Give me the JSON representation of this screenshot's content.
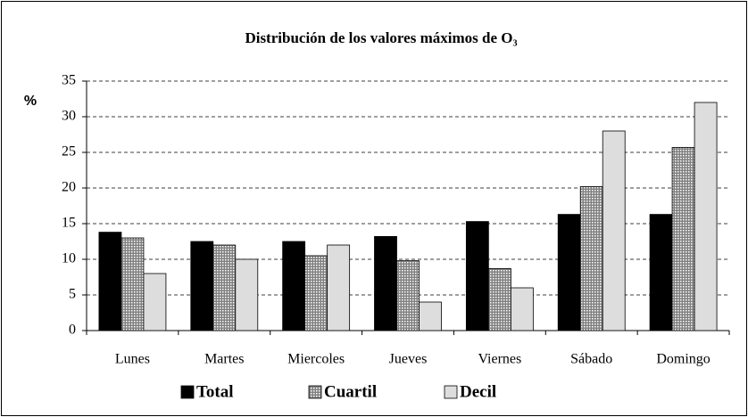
{
  "chart_data": {
    "type": "bar",
    "title": "Distribución de los valores máximos de O₃",
    "y_label": "%",
    "categories": [
      "Lunes",
      "Martes",
      "Miercoles",
      "Jueves",
      "Viernes",
      "Sábado",
      "Domingo"
    ],
    "series": [
      {
        "name": "Total",
        "color": "#000000",
        "values": [
          13.8,
          12.5,
          12.5,
          13.2,
          15.3,
          16.3,
          16.3
        ]
      },
      {
        "name": "Cuartil",
        "color": "#808080",
        "values": [
          13,
          12,
          10.5,
          9.8,
          8.7,
          20.2,
          25.7
        ]
      },
      {
        "name": "Decil",
        "color": "#dddddd",
        "values": [
          8,
          10,
          12,
          4,
          6,
          28,
          32
        ]
      }
    ],
    "ylim": [
      0,
      35
    ],
    "yticks": [
      0,
      5,
      10,
      15,
      20,
      25,
      30,
      35
    ],
    "grid": true,
    "legend": "bottom"
  }
}
